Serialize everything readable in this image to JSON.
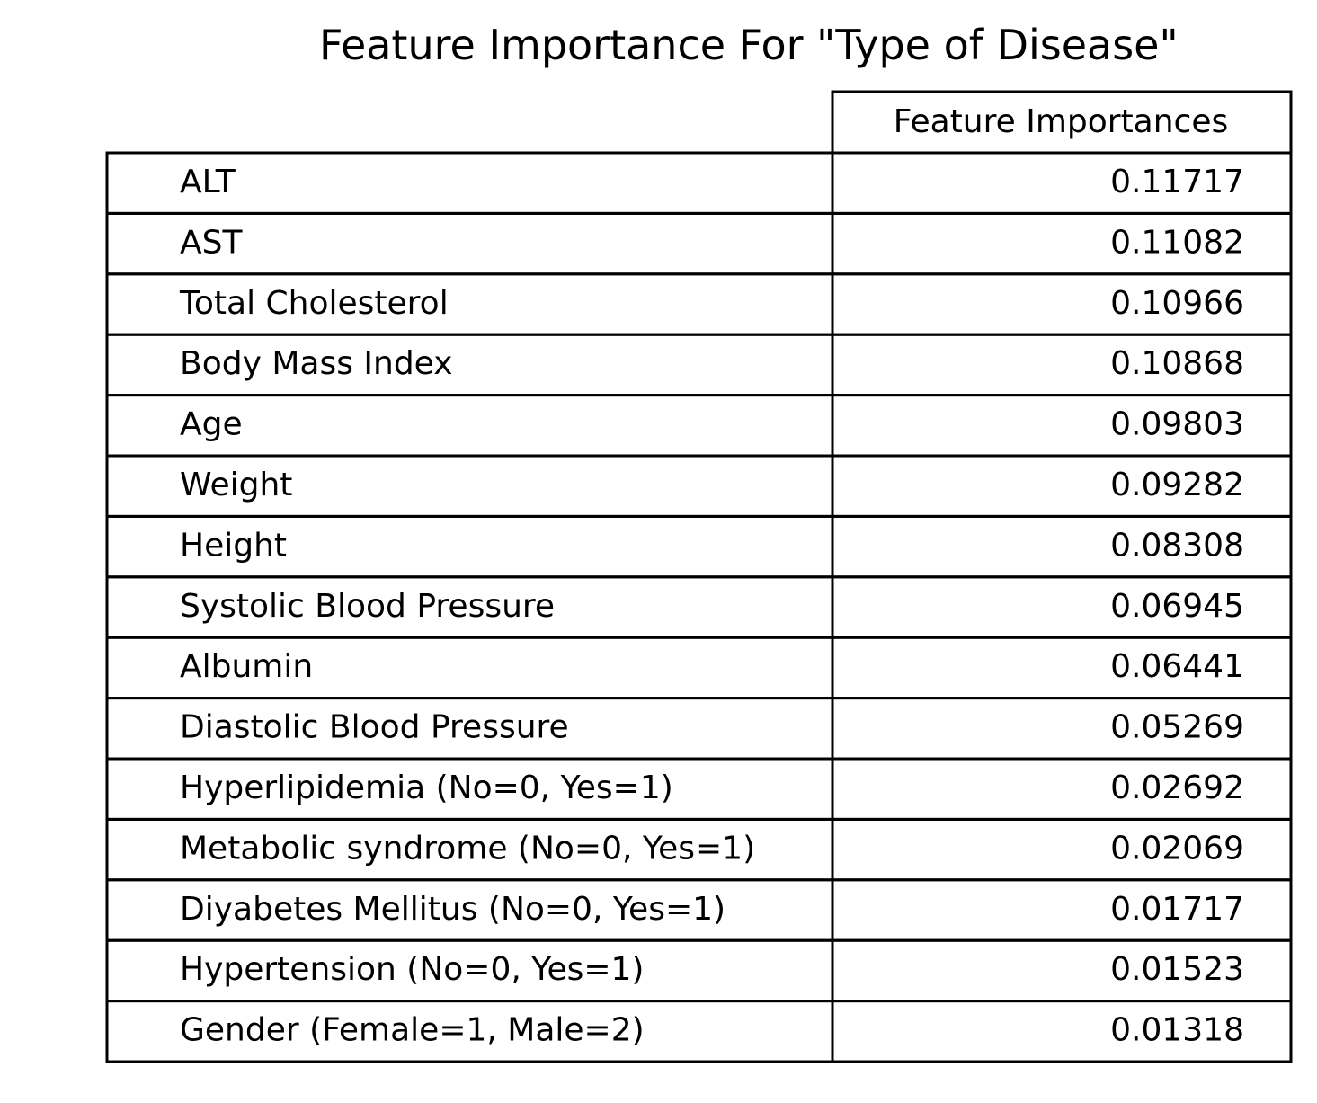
{
  "title": "Feature Importance For \"Type of Disease\"",
  "chart_data": {
    "type": "table",
    "title": "Feature Importance For \"Type of Disease\"",
    "columns": [
      "Feature Importances"
    ],
    "rows": [
      {
        "label": "ALT",
        "value": "0.11717"
      },
      {
        "label": "AST",
        "value": "0.11082"
      },
      {
        "label": "Total Cholesterol",
        "value": "0.10966"
      },
      {
        "label": "Body Mass Index",
        "value": "0.10868"
      },
      {
        "label": "Age",
        "value": "0.09803"
      },
      {
        "label": "Weight",
        "value": "0.09282"
      },
      {
        "label": "Height",
        "value": "0.08308"
      },
      {
        "label": "Systolic Blood Pressure",
        "value": "0.06945"
      },
      {
        "label": "Albumin",
        "value": "0.06441"
      },
      {
        "label": "Diastolic Blood Pressure",
        "value": "0.05269"
      },
      {
        "label": "Hyperlipidemia (No=0, Yes=1)",
        "value": "0.02692"
      },
      {
        "label": "Metabolic syndrome (No=0, Yes=1)",
        "value": "0.02069"
      },
      {
        "label": "Diyabetes Mellitus (No=0, Yes=1)",
        "value": "0.01717"
      },
      {
        "label": "Hypertension (No=0, Yes=1)",
        "value": "0.01523"
      },
      {
        "label": "Gender (Female=1, Male=2)",
        "value": "0.01318"
      }
    ]
  }
}
